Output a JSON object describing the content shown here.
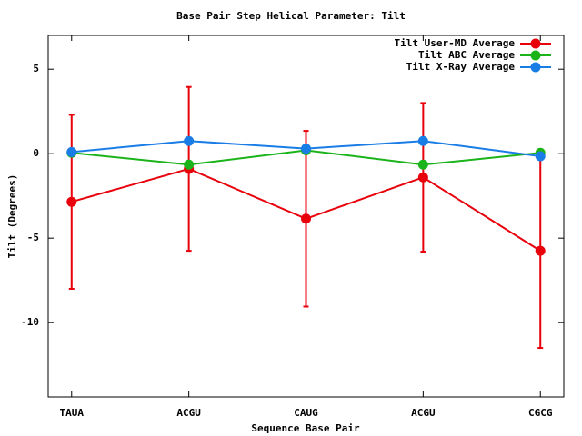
{
  "chart_data": {
    "type": "line",
    "title": "Base Pair Step Helical Parameter: Tilt",
    "x_label": "Sequence Base Pair",
    "y_label": "Tilt (Degrees)",
    "categories": [
      "TAUA",
      "ACGU",
      "CAUG",
      "ACGU",
      "CGCG"
    ],
    "series": [
      {
        "name": "Tilt User-MD Average",
        "color": "#e8000b",
        "values": [
          -2.85,
          -0.9,
          -3.85,
          -1.4,
          -5.75
        ],
        "errors": [
          5.15,
          4.85,
          5.2,
          4.4,
          5.75
        ]
      },
      {
        "name": "Tilt ABC Average",
        "color": "#1ab31a",
        "values": [
          0.05,
          -0.65,
          0.2,
          -0.65,
          0.05
        ]
      },
      {
        "name": "Tilt X-Ray Average",
        "color": "#1a7de6",
        "values": [
          0.1,
          0.75,
          0.3,
          0.75,
          -0.15
        ]
      }
    ],
    "ylim": [
      -14.4,
      7
    ],
    "yticks": [
      -10,
      -5,
      0,
      5
    ],
    "legend": "top-right"
  }
}
